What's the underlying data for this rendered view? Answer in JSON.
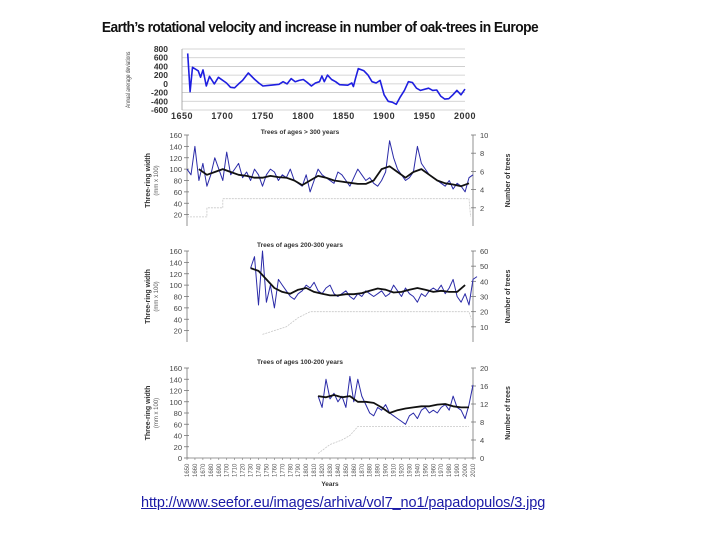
{
  "slide": {
    "title": "Earth’s rotational velocity and increase in number of oak-trees in Europe",
    "url": "http://www.seefor.eu/images/arhiva/vol7_no1/papadopulos/3.jpg"
  },
  "colors": {
    "raw": "#2b2ba8",
    "smooth": "#111111",
    "top_line": "#1f1fe0",
    "count": "#c8c8c8",
    "grid": "#c8c8c8"
  },
  "chart_data": [
    {
      "type": "line",
      "title": "",
      "ylabel": "Annual average deviations",
      "xlim": [
        1650,
        2000
      ],
      "ylim": [
        -600,
        800
      ],
      "xticks": [
        1650,
        1700,
        1750,
        1800,
        1850,
        1900,
        1950,
        2000
      ],
      "yticks": [
        800,
        600,
        400,
        200,
        0,
        -200,
        -400,
        -600
      ],
      "grid": true,
      "series": [
        {
          "points": [
            [
              1657,
              700
            ],
            [
              1660,
              -180
            ],
            [
              1663,
              380
            ],
            [
              1670,
              300
            ],
            [
              1673,
              150
            ],
            [
              1676,
              320
            ],
            [
              1680,
              -50
            ],
            [
              1684,
              170
            ],
            [
              1690,
              0
            ],
            [
              1695,
              150
            ],
            [
              1705,
              20
            ],
            [
              1710,
              -80
            ],
            [
              1715,
              -90
            ],
            [
              1720,
              0
            ],
            [
              1725,
              80
            ],
            [
              1732,
              250
            ],
            [
              1740,
              100
            ],
            [
              1745,
              20
            ],
            [
              1750,
              -50
            ],
            [
              1760,
              -30
            ],
            [
              1770,
              -10
            ],
            [
              1775,
              50
            ],
            [
              1780,
              0
            ],
            [
              1785,
              120
            ],
            [
              1790,
              50
            ],
            [
              1795,
              80
            ],
            [
              1800,
              100
            ],
            [
              1805,
              30
            ],
            [
              1810,
              -50
            ],
            [
              1815,
              20
            ],
            [
              1820,
              50
            ],
            [
              1823,
              180
            ],
            [
              1826,
              50
            ],
            [
              1830,
              200
            ],
            [
              1835,
              100
            ],
            [
              1840,
              50
            ],
            [
              1845,
              -20
            ],
            [
              1855,
              -30
            ],
            [
              1860,
              20
            ],
            [
              1862,
              -60
            ],
            [
              1865,
              150
            ],
            [
              1868,
              350
            ],
            [
              1875,
              300
            ],
            [
              1880,
              200
            ],
            [
              1885,
              50
            ],
            [
              1890,
              20
            ],
            [
              1895,
              80
            ],
            [
              1900,
              -250
            ],
            [
              1905,
              -400
            ],
            [
              1910,
              -420
            ],
            [
              1915,
              -470
            ],
            [
              1920,
              -300
            ],
            [
              1925,
              -150
            ],
            [
              1930,
              50
            ],
            [
              1935,
              30
            ],
            [
              1940,
              -100
            ],
            [
              1945,
              -150
            ],
            [
              1955,
              -100
            ],
            [
              1960,
              -150
            ],
            [
              1965,
              -140
            ],
            [
              1970,
              -280
            ],
            [
              1975,
              -350
            ],
            [
              1980,
              -340
            ],
            [
              1985,
              -250
            ],
            [
              1990,
              -150
            ],
            [
              1995,
              -250
            ],
            [
              2000,
              -120
            ]
          ]
        }
      ]
    },
    {
      "type": "line",
      "title": "Trees of ages > 300 years",
      "ylabel": "Three-ring width",
      "ylabel_unit": "(mm x 100)",
      "y2label": "Number of trees",
      "xlim": [
        1650,
        2010
      ],
      "ylim": [
        0,
        160
      ],
      "y2lim": [
        0,
        10
      ],
      "yticks": [
        20,
        40,
        60,
        80,
        100,
        120,
        140,
        160
      ],
      "y2ticks": [
        2,
        4,
        6,
        8,
        10
      ],
      "raw": {
        "start": 1650,
        "step": 5,
        "values": [
          100,
          90,
          140,
          80,
          110,
          70,
          90,
          120,
          100,
          80,
          130,
          90,
          100,
          110,
          85,
          95,
          80,
          100,
          90,
          70,
          90,
          100,
          95,
          80,
          90,
          85,
          100,
          80,
          75,
          70,
          90,
          60,
          80,
          100,
          90,
          85,
          80,
          75,
          95,
          90,
          80,
          70,
          85,
          100,
          90,
          80,
          85,
          75,
          70,
          80,
          95,
          150,
          120,
          100,
          90,
          80,
          85,
          95,
          140,
          110,
          100,
          90,
          85,
          80,
          75,
          70,
          80,
          65,
          75,
          70,
          60,
          85,
          90
        ]
      },
      "smooth": {
        "start": 1665,
        "step": 10,
        "values": [
          100,
          90,
          95,
          100,
          95,
          90,
          88,
          85,
          85,
          88,
          86,
          85,
          80,
          72,
          80,
          88,
          85,
          80,
          78,
          76,
          74,
          74,
          80,
          100,
          105,
          95,
          85,
          95,
          100,
          90,
          80,
          75,
          73,
          70,
          75
        ]
      },
      "trees": [
        [
          1650,
          1
        ],
        [
          1675,
          1
        ],
        [
          1675,
          2
        ],
        [
          1695,
          2
        ],
        [
          1695,
          3
        ],
        [
          2005,
          3
        ],
        [
          2007,
          1
        ]
      ]
    },
    {
      "type": "line",
      "title": "Trees of ages 200-300 years",
      "ylabel": "Three-ring width",
      "ylabel_unit": "(mm x 100)",
      "y2label": "Number of trees",
      "xlim": [
        1650,
        2010
      ],
      "ylim": [
        0,
        160
      ],
      "y2lim": [
        0,
        60
      ],
      "yticks": [
        20,
        40,
        60,
        80,
        100,
        120,
        140,
        160
      ],
      "y2ticks": [
        10,
        20,
        30,
        40,
        50,
        60
      ],
      "raw": {
        "start": 1730,
        "step": 5,
        "values": [
          130,
          150,
          65,
          160,
          70,
          100,
          60,
          110,
          100,
          90,
          80,
          75,
          85,
          90,
          100,
          95,
          105,
          90,
          85,
          95,
          100,
          85,
          80,
          85,
          90,
          80,
          75,
          85,
          80,
          90,
          85,
          80,
          85,
          90,
          80,
          85,
          100,
          90,
          80,
          95,
          85,
          80,
          70,
          85,
          80,
          90,
          95,
          90,
          100,
          85,
          95,
          110,
          80,
          70,
          85,
          65,
          110,
          115
        ]
      },
      "smooth": {
        "start": 1730,
        "step": 10,
        "values": [
          130,
          125,
          110,
          95,
          88,
          85,
          92,
          95,
          88,
          85,
          82,
          82,
          84,
          84,
          86,
          90,
          94,
          92,
          87,
          88,
          92,
          95,
          92,
          88,
          90,
          88,
          88,
          100
        ]
      },
      "trees": [
        [
          1745,
          5
        ],
        [
          1775,
          10
        ],
        [
          1790,
          16
        ],
        [
          1805,
          20
        ],
        [
          2005,
          20
        ],
        [
          2008,
          15
        ]
      ]
    },
    {
      "type": "line",
      "title": "Trees of ages 100-200 years",
      "ylabel": "Three-ring width",
      "ylabel_unit": "(mm x 100)",
      "y2label": "Number of trees",
      "xlabel": "Years",
      "xlim": [
        1650,
        2010
      ],
      "ylim": [
        0,
        160
      ],
      "y2lim": [
        0,
        20
      ],
      "yticks": [
        0,
        20,
        40,
        60,
        80,
        100,
        120,
        140,
        160
      ],
      "y2ticks": [
        0,
        4,
        8,
        12,
        16,
        20
      ],
      "xticks": [
        1650,
        1660,
        1670,
        1680,
        1690,
        1700,
        1710,
        1720,
        1730,
        1740,
        1750,
        1760,
        1770,
        1780,
        1790,
        1800,
        1810,
        1820,
        1830,
        1840,
        1850,
        1860,
        1870,
        1880,
        1890,
        1900,
        1910,
        1920,
        1930,
        1940,
        1950,
        1960,
        1970,
        1980,
        1990,
        2000,
        2010
      ],
      "raw": {
        "start": 1815,
        "step": 5,
        "values": [
          110,
          90,
          140,
          105,
          115,
          100,
          110,
          90,
          145,
          100,
          140,
          110,
          95,
          80,
          75,
          90,
          85,
          95,
          80,
          75,
          70,
          65,
          60,
          75,
          80,
          70,
          85,
          90,
          80,
          85,
          80,
          90,
          95,
          85,
          110,
          90,
          85,
          70,
          95,
          130
        ]
      },
      "smooth": {
        "start": 1815,
        "step": 10,
        "values": [
          110,
          108,
          112,
          108,
          110,
          100,
          100,
          98,
          90,
          80,
          85,
          88,
          90,
          92,
          92,
          95,
          96,
          92,
          90,
          90
        ]
      },
      "trees": [
        [
          1815,
          1
        ],
        [
          1830,
          3
        ],
        [
          1845,
          4
        ],
        [
          1855,
          5
        ],
        [
          1865,
          7
        ],
        [
          2005,
          7
        ]
      ]
    }
  ]
}
